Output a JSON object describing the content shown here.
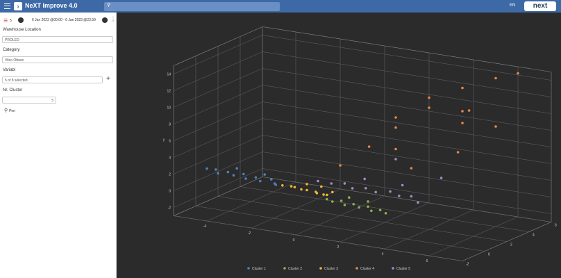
{
  "header": {
    "title": "NeXT Improve 4.0",
    "language": "EN",
    "logo": "next"
  },
  "sidebar": {
    "filter_count": "5",
    "date_range": "6 Jan 2023 @00:00 - 6 Jan 2023 @23:59",
    "fields": [
      {
        "label": "Warehouse Location",
        "value": "PROLED"
      },
      {
        "label": "Category",
        "value": "Vitco Ottave"
      },
      {
        "label": "Variabl",
        "value": "5 of 8 selected"
      },
      {
        "label": "Nr. Cluster",
        "value": "5"
      }
    ],
    "button": "Pen"
  },
  "chart_data": {
    "type": "scatter3d",
    "y_axis_label": "y",
    "xlim": [
      -5.5,
      7.5
    ],
    "xticks": [
      -4,
      -2,
      0,
      2,
      4,
      6
    ],
    "ylim": [
      -3,
      15
    ],
    "yticks": [
      -2,
      0,
      2,
      4,
      6,
      8,
      10,
      12,
      14
    ],
    "zlim": [
      -2,
      6
    ],
    "zticks": [
      -2,
      0,
      2,
      4,
      6
    ],
    "grid": true,
    "legend": "bottom",
    "series": [
      {
        "name": "Cluster 1",
        "color": "#4e7fb8",
        "x": [
          -5,
          -4.7,
          -4.4,
          -4.1,
          -3.8,
          -3.5,
          -3.2,
          -2.9,
          -2.6,
          -2.3,
          -2,
          -1.8,
          -3.9,
          -2.7
        ],
        "y": [
          1.7,
          1.6,
          1.5,
          1.6,
          1.4,
          1.5,
          1.3,
          1.4,
          1.2,
          1.3,
          1.1,
          1.2,
          1.9,
          1.6
        ],
        "z": [
          0,
          0.2,
          -0.2,
          0.1,
          0,
          0.3,
          -0.1,
          0.2,
          0,
          0.4,
          0.1,
          -0.2,
          0.5,
          0.6
        ]
      },
      {
        "name": "Cluster 2",
        "color": "#8db04e",
        "x": [
          0.6,
          0.9,
          1.2,
          1.5,
          1.8,
          2.1,
          2.4,
          2.7,
          3,
          3.3,
          1.4,
          2.2
        ],
        "y": [
          0.6,
          0.5,
          0.6,
          0.4,
          0.5,
          0.3,
          0.4,
          0.2,
          0.3,
          0.1,
          0.9,
          0.7
        ],
        "z": [
          -0.4,
          -0.5,
          -0.3,
          -0.6,
          -0.4,
          -0.5,
          -0.3,
          -0.6,
          -0.4,
          -0.5,
          0,
          0.1
        ]
      },
      {
        "name": "Cluster 3",
        "color": "#f2b632",
        "x": [
          -1.6,
          -1.3,
          -1,
          -0.8,
          -0.5,
          -0.2,
          0,
          0.2,
          0.4,
          -0.7,
          -0.1,
          0.5
        ],
        "y": [
          1.1,
          1,
          1.2,
          0.9,
          1,
          0.8,
          0.9,
          0.7,
          0.8,
          1.4,
          1.3,
          1
        ],
        "z": [
          0,
          0.2,
          -0.1,
          0.1,
          0,
          0.2,
          -0.1,
          0.1,
          0,
          0.4,
          0.5,
          0.3
        ]
      },
      {
        "name": "Cluster 4",
        "color": "#e8874a",
        "x": [
          0,
          0.8,
          1.5,
          2,
          2.5,
          3,
          3.5,
          4,
          4.5,
          5,
          5.5,
          6,
          6.5,
          3.2,
          4.8,
          5.8
        ],
        "y": [
          3,
          5,
          7,
          9,
          6,
          10,
          12,
          8,
          13,
          11,
          14,
          9,
          15,
          4,
          6,
          12
        ],
        "z": [
          2,
          3,
          4,
          3,
          2,
          4,
          3,
          5,
          4,
          3,
          5,
          4,
          5,
          2,
          3,
          2
        ]
      },
      {
        "name": "Cluster 5",
        "color": "#a58bc9",
        "x": [
          -0.5,
          0,
          0.5,
          1,
          1.5,
          2,
          2.5,
          3,
          3.5,
          1.2,
          2.8,
          4,
          4.3,
          2
        ],
        "y": [
          1.5,
          1.3,
          1.4,
          1.2,
          1.3,
          1.1,
          1.2,
          1,
          1.1,
          2,
          1.8,
          0.8,
          3,
          4
        ],
        "z": [
          1,
          1.2,
          1.4,
          1.1,
          1.3,
          1.2,
          1.5,
          1.3,
          1.4,
          1.8,
          2,
          1,
          2.5,
          3
        ]
      }
    ]
  }
}
